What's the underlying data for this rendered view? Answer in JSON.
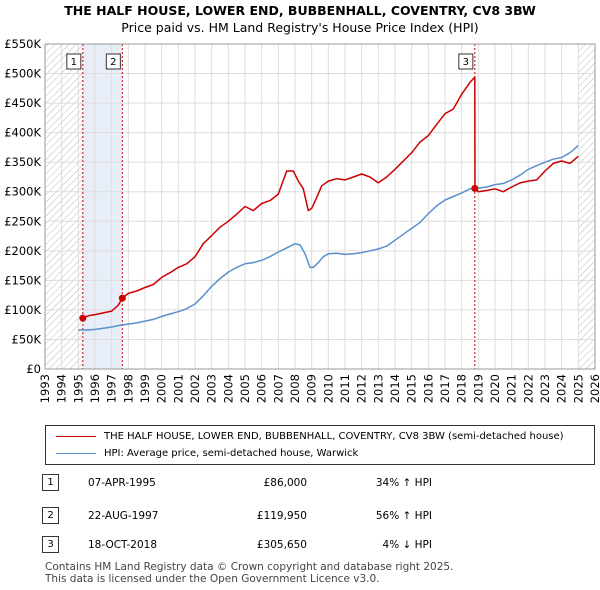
{
  "title": "THE HALF HOUSE, LOWER END, BUBBENHALL, COVENTRY, CV8 3BW",
  "subtitle": "Price paid vs. HM Land Registry's House Price Index (HPI)",
  "colors": {
    "property": "#cc0000",
    "hpi": "#5b8fcc",
    "band": "#e8eef8",
    "grid": "#dddddd",
    "hatch": "#bbbbbb"
  },
  "chart_data": {
    "type": "line",
    "title": "THE HALF HOUSE, LOWER END, BUBBENHALL, COVENTRY, CV8 3BW",
    "subtitle": "Price paid vs. HM Land Registry's House Price Index (HPI)",
    "xlim": [
      1993,
      2026
    ],
    "ylim": [
      0,
      550000
    ],
    "x_ticks": [
      1993,
      1994,
      1995,
      1996,
      1997,
      1998,
      1999,
      2000,
      2001,
      2002,
      2003,
      2004,
      2005,
      2006,
      2007,
      2008,
      2009,
      2010,
      2011,
      2012,
      2013,
      2014,
      2015,
      2016,
      2017,
      2018,
      2019,
      2020,
      2021,
      2022,
      2023,
      2024,
      2025,
      2026
    ],
    "y_ticks": [
      0,
      50000,
      100000,
      150000,
      200000,
      250000,
      300000,
      350000,
      400000,
      450000,
      500000,
      550000
    ],
    "y_tick_labels": [
      "£0",
      "£50K",
      "£100K",
      "£150K",
      "£200K",
      "£250K",
      "£300K",
      "£350K",
      "£400K",
      "£450K",
      "£500K",
      "£550K"
    ],
    "grid": true,
    "hatched_regions": [
      [
        1993,
        1995.27
      ],
      [
        2025.0,
        2026
      ]
    ],
    "highlight_band": [
      1995.27,
      1997.64
    ],
    "series": [
      {
        "name": "THE HALF HOUSE, LOWER END, BUBBENHALL, COVENTRY, CV8 3BW (semi-detached house)",
        "color": "#cc0000",
        "x": [
          1995.27,
          1995.6,
          1996.0,
          1996.5,
          1997.0,
          1997.4,
          1997.64,
          1998.0,
          1998.5,
          1999.0,
          1999.5,
          2000.0,
          2000.5,
          2001.0,
          2001.5,
          2002.0,
          2002.5,
          2003.0,
          2003.5,
          2004.0,
          2004.5,
          2005.0,
          2005.5,
          2006.0,
          2006.5,
          2007.0,
          2007.5,
          2007.9,
          2008.2,
          2008.5,
          2008.8,
          2009.0,
          2009.3,
          2009.6,
          2010.0,
          2010.5,
          2011.0,
          2011.5,
          2012.0,
          2012.5,
          2013.0,
          2013.5,
          2014.0,
          2014.5,
          2015.0,
          2015.5,
          2016.0,
          2016.5,
          2017.0,
          2017.5,
          2018.0,
          2018.5,
          2018.79,
          2018.8,
          2019.0,
          2019.5,
          2020.0,
          2020.5,
          2021.0,
          2021.5,
          2022.0,
          2022.5,
          2023.0,
          2023.5,
          2024.0,
          2024.5,
          2025.0
        ],
        "y": [
          86000,
          90000,
          92000,
          95000,
          98000,
          108000,
          119950,
          128000,
          132000,
          138000,
          143000,
          155000,
          163000,
          172000,
          178000,
          190000,
          212000,
          226000,
          240000,
          250000,
          262000,
          275000,
          268000,
          280000,
          285000,
          296000,
          335000,
          335000,
          318000,
          305000,
          268000,
          272000,
          290000,
          310000,
          318000,
          322000,
          320000,
          325000,
          330000,
          325000,
          315000,
          325000,
          338000,
          352000,
          366000,
          384000,
          395000,
          414000,
          432000,
          440000,
          465000,
          485000,
          494000,
          305650,
          300000,
          302000,
          305000,
          300000,
          308000,
          315000,
          318000,
          320000,
          335000,
          348000,
          352000,
          348000,
          360000
        ]
      },
      {
        "name": "HPI: Average price, semi-detached house, Warwick",
        "color": "#5b8fcc",
        "x": [
          1995.0,
          1995.5,
          1996.0,
          1996.5,
          1997.0,
          1997.5,
          1998.0,
          1998.5,
          1999.0,
          1999.5,
          2000.0,
          2000.5,
          2001.0,
          2001.5,
          2002.0,
          2002.5,
          2003.0,
          2003.5,
          2004.0,
          2004.5,
          2005.0,
          2005.5,
          2006.0,
          2006.5,
          2007.0,
          2007.5,
          2008.0,
          2008.3,
          2008.6,
          2008.9,
          2009.1,
          2009.4,
          2009.7,
          2010.0,
          2010.5,
          2011.0,
          2011.5,
          2012.0,
          2012.5,
          2013.0,
          2013.5,
          2014.0,
          2014.5,
          2015.0,
          2015.5,
          2016.0,
          2016.5,
          2017.0,
          2017.5,
          2018.0,
          2018.5,
          2019.0,
          2019.5,
          2020.0,
          2020.5,
          2021.0,
          2021.5,
          2022.0,
          2022.5,
          2023.0,
          2023.5,
          2024.0,
          2024.5,
          2025.0
        ],
        "y": [
          66000,
          66000,
          67000,
          69000,
          71000,
          74000,
          76000,
          78000,
          81000,
          84000,
          89000,
          93000,
          97000,
          102000,
          110000,
          124000,
          140000,
          153000,
          164000,
          172000,
          178000,
          180000,
          184000,
          190000,
          198000,
          205000,
          212000,
          210000,
          195000,
          172000,
          172000,
          180000,
          190000,
          195000,
          196000,
          194000,
          195000,
          197000,
          200000,
          203000,
          208000,
          218000,
          228000,
          238000,
          248000,
          263000,
          276000,
          286000,
          292000,
          298000,
          305000,
          306000,
          308000,
          312000,
          314000,
          320000,
          328000,
          338000,
          344000,
          350000,
          355000,
          358000,
          366000,
          378000
        ]
      }
    ],
    "transactions": [
      {
        "label": "1",
        "date": "07-APR-1995",
        "price": "£86,000",
        "hpi": "34% ↑ HPI",
        "x": 1995.27,
        "y": 86000
      },
      {
        "label": "2",
        "date": "22-AUG-1997",
        "price": "£119,950",
        "hpi": "56% ↑ HPI",
        "x": 1997.64,
        "y": 119950
      },
      {
        "label": "3",
        "date": "18-OCT-2018",
        "price": "£305,650",
        "hpi": "4% ↓ HPI",
        "x": 2018.79,
        "y": 305650
      }
    ]
  },
  "legend": {
    "property": "THE HALF HOUSE, LOWER END, BUBBENHALL, COVENTRY, CV8 3BW (semi-detached house)",
    "hpi": "HPI: Average price, semi-detached house, Warwick"
  },
  "footer": {
    "line1": "Contains HM Land Registry data © Crown copyright and database right 2025.",
    "line2": "This data is licensed under the Open Government Licence v3.0."
  }
}
